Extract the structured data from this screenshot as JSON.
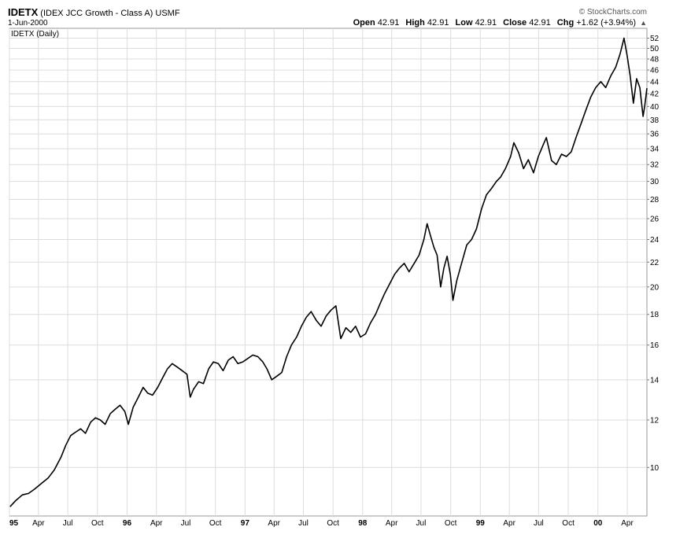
{
  "header": {
    "symbol": "IDETX",
    "full_name": "(IDEX JCC Growth - Class A) USMF",
    "date": "1-Jun-2000",
    "brand": "© StockCharts.com",
    "open_label": "Open",
    "open": "42.91",
    "high_label": "High",
    "high": "42.91",
    "low_label": "Low",
    "low": "42.91",
    "close_label": "Close",
    "close": "42.91",
    "chg_label": "Chg",
    "chg": "+1.62 (+3.94%)",
    "chg_arrow": "▲",
    "legend": "IDETX (Daily)"
  },
  "chart_data": {
    "type": "line",
    "title": "IDETX (IDEX JCC Growth - Class A) USMF",
    "series": [
      {
        "name": "IDETX (Daily)",
        "color": "#000000"
      }
    ],
    "y_scale": "log",
    "ylim": [
      8.3,
      54
    ],
    "y_ticks": [
      10,
      12,
      14,
      16,
      18,
      20,
      22,
      24,
      26,
      28,
      30,
      32,
      34,
      36,
      38,
      40,
      42,
      44,
      46,
      48,
      50,
      52
    ],
    "x_ticks": [
      "95",
      "Apr",
      "Jul",
      "Oct",
      "96",
      "Apr",
      "Jul",
      "Oct",
      "97",
      "Apr",
      "Jul",
      "Oct",
      "98",
      "Apr",
      "Jul",
      "Oct",
      "99",
      "Apr",
      "Jul",
      "Oct",
      "00",
      "Apr"
    ],
    "xlim": [
      "1995-01-01",
      "2000-06-01"
    ],
    "grid": true,
    "points": [
      [
        "1995-01-03",
        8.6
      ],
      [
        "1995-01-20",
        8.8
      ],
      [
        "1995-02-10",
        9.0
      ],
      [
        "1995-03-01",
        9.05
      ],
      [
        "1995-03-20",
        9.2
      ],
      [
        "1995-04-10",
        9.4
      ],
      [
        "1995-05-01",
        9.6
      ],
      [
        "1995-05-20",
        9.9
      ],
      [
        "1995-06-10",
        10.4
      ],
      [
        "1995-06-25",
        10.9
      ],
      [
        "1995-07-10",
        11.3
      ],
      [
        "1995-07-25",
        11.45
      ],
      [
        "1995-08-10",
        11.6
      ],
      [
        "1995-08-25",
        11.4
      ],
      [
        "1995-09-10",
        11.9
      ],
      [
        "1995-09-25",
        12.1
      ],
      [
        "1995-10-10",
        12.0
      ],
      [
        "1995-10-25",
        11.8
      ],
      [
        "1995-11-10",
        12.3
      ],
      [
        "1995-11-25",
        12.5
      ],
      [
        "1995-12-10",
        12.7
      ],
      [
        "1995-12-25",
        12.4
      ],
      [
        "1996-01-05",
        11.8
      ],
      [
        "1996-01-20",
        12.6
      ],
      [
        "1996-02-05",
        13.1
      ],
      [
        "1996-02-20",
        13.6
      ],
      [
        "1996-03-05",
        13.3
      ],
      [
        "1996-03-20",
        13.2
      ],
      [
        "1996-04-05",
        13.6
      ],
      [
        "1996-04-20",
        14.1
      ],
      [
        "1996-05-05",
        14.6
      ],
      [
        "1996-05-20",
        14.9
      ],
      [
        "1996-06-05",
        14.7
      ],
      [
        "1996-06-20",
        14.5
      ],
      [
        "1996-07-05",
        14.3
      ],
      [
        "1996-07-15",
        13.1
      ],
      [
        "1996-07-25",
        13.5
      ],
      [
        "1996-08-10",
        13.9
      ],
      [
        "1996-08-25",
        13.8
      ],
      [
        "1996-09-10",
        14.6
      ],
      [
        "1996-09-25",
        15.0
      ],
      [
        "1996-10-10",
        14.9
      ],
      [
        "1996-10-25",
        14.5
      ],
      [
        "1996-11-10",
        15.1
      ],
      [
        "1996-11-25",
        15.3
      ],
      [
        "1996-12-10",
        14.9
      ],
      [
        "1996-12-25",
        15.0
      ],
      [
        "1997-01-10",
        15.2
      ],
      [
        "1997-01-25",
        15.4
      ],
      [
        "1997-02-10",
        15.3
      ],
      [
        "1997-02-25",
        15.0
      ],
      [
        "1997-03-10",
        14.6
      ],
      [
        "1997-03-25",
        14.0
      ],
      [
        "1997-04-10",
        14.2
      ],
      [
        "1997-04-25",
        14.4
      ],
      [
        "1997-05-10",
        15.3
      ],
      [
        "1997-05-25",
        16.0
      ],
      [
        "1997-06-10",
        16.5
      ],
      [
        "1997-06-25",
        17.2
      ],
      [
        "1997-07-10",
        17.8
      ],
      [
        "1997-07-25",
        18.2
      ],
      [
        "1997-08-10",
        17.6
      ],
      [
        "1997-08-25",
        17.2
      ],
      [
        "1997-09-10",
        17.9
      ],
      [
        "1997-09-25",
        18.3
      ],
      [
        "1997-10-10",
        18.6
      ],
      [
        "1997-10-25",
        16.4
      ],
      [
        "1997-11-10",
        17.1
      ],
      [
        "1997-11-25",
        16.8
      ],
      [
        "1997-12-10",
        17.2
      ],
      [
        "1997-12-25",
        16.5
      ],
      [
        "1998-01-10",
        16.7
      ],
      [
        "1998-01-25",
        17.4
      ],
      [
        "1998-02-10",
        18.0
      ],
      [
        "1998-02-25",
        18.8
      ],
      [
        "1998-03-10",
        19.5
      ],
      [
        "1998-03-25",
        20.2
      ],
      [
        "1998-04-10",
        21.0
      ],
      [
        "1998-04-25",
        21.5
      ],
      [
        "1998-05-10",
        21.9
      ],
      [
        "1998-05-25",
        21.2
      ],
      [
        "1998-06-10",
        21.9
      ],
      [
        "1998-06-25",
        22.6
      ],
      [
        "1998-07-10",
        24.0
      ],
      [
        "1998-07-20",
        25.5
      ],
      [
        "1998-07-30",
        24.4
      ],
      [
        "1998-08-10",
        23.3
      ],
      [
        "1998-08-20",
        22.6
      ],
      [
        "1998-08-31",
        20.0
      ],
      [
        "1998-09-10",
        21.5
      ],
      [
        "1998-09-20",
        22.5
      ],
      [
        "1998-09-30",
        21.0
      ],
      [
        "1998-10-08",
        19.0
      ],
      [
        "1998-10-20",
        20.5
      ],
      [
        "1998-11-05",
        22.0
      ],
      [
        "1998-11-20",
        23.5
      ],
      [
        "1998-12-05",
        24.0
      ],
      [
        "1998-12-20",
        25.0
      ],
      [
        "1999-01-05",
        27.0
      ],
      [
        "1999-01-20",
        28.5
      ],
      [
        "1999-02-05",
        29.2
      ],
      [
        "1999-02-20",
        30.0
      ],
      [
        "1999-03-05",
        30.5
      ],
      [
        "1999-03-20",
        31.5
      ],
      [
        "1999-04-05",
        33.0
      ],
      [
        "1999-04-15",
        34.8
      ],
      [
        "1999-04-30",
        33.5
      ],
      [
        "1999-05-15",
        31.5
      ],
      [
        "1999-05-30",
        32.6
      ],
      [
        "1999-06-15",
        31.0
      ],
      [
        "1999-06-30",
        33.0
      ],
      [
        "1999-07-15",
        34.5
      ],
      [
        "1999-07-25",
        35.5
      ],
      [
        "1999-08-10",
        32.5
      ],
      [
        "1999-08-25",
        32.0
      ],
      [
        "1999-09-10",
        33.3
      ],
      [
        "1999-09-25",
        33.0
      ],
      [
        "1999-10-10",
        33.6
      ],
      [
        "1999-10-25",
        35.5
      ],
      [
        "1999-11-10",
        37.5
      ],
      [
        "1999-11-25",
        39.5
      ],
      [
        "1999-12-10",
        41.5
      ],
      [
        "1999-12-25",
        43.0
      ],
      [
        "2000-01-10",
        44.0
      ],
      [
        "2000-01-25",
        43.0
      ],
      [
        "2000-02-10",
        45.0
      ],
      [
        "2000-02-25",
        46.5
      ],
      [
        "2000-03-10",
        49.0
      ],
      [
        "2000-03-22",
        52.0
      ],
      [
        "2000-04-01",
        48.5
      ],
      [
        "2000-04-10",
        45.0
      ],
      [
        "2000-04-20",
        40.5
      ],
      [
        "2000-04-30",
        44.5
      ],
      [
        "2000-05-10",
        43.0
      ],
      [
        "2000-05-20",
        38.5
      ],
      [
        "2000-05-25",
        40.0
      ],
      [
        "2000-06-01",
        42.91
      ]
    ]
  }
}
